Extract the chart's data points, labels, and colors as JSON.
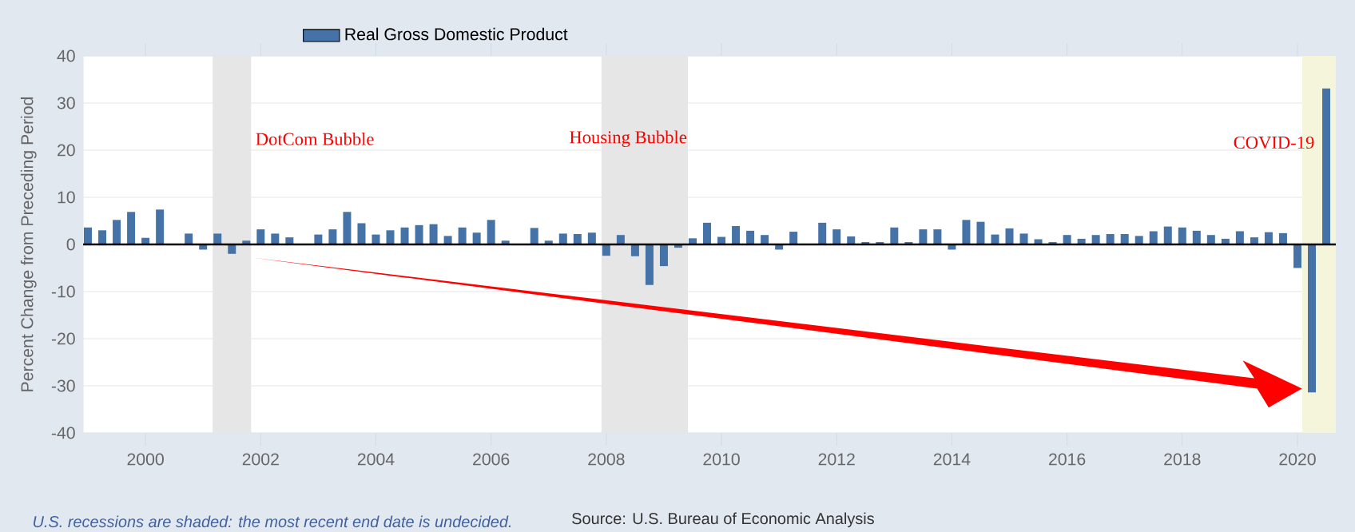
{
  "chart_data": {
    "type": "bar",
    "ylabel": "Percent Change from Preceding Period",
    "x": [
      "1999-01",
      "1999-04",
      "1999-07",
      "1999-10",
      "2000-01",
      "2000-04",
      "2000-07",
      "2000-10",
      "2001-01",
      "2001-04",
      "2001-07",
      "2001-10",
      "2002-01",
      "2002-04",
      "2002-07",
      "2002-10",
      "2003-01",
      "2003-04",
      "2003-07",
      "2003-10",
      "2004-01",
      "2004-04",
      "2004-07",
      "2004-10",
      "2005-01",
      "2005-04",
      "2005-07",
      "2005-10",
      "2006-01",
      "2006-04",
      "2006-07",
      "2006-10",
      "2007-01",
      "2007-04",
      "2007-07",
      "2007-10",
      "2008-01",
      "2008-04",
      "2008-07",
      "2008-10",
      "2009-01",
      "2009-04",
      "2009-07",
      "2009-10",
      "2010-01",
      "2010-04",
      "2010-07",
      "2010-10",
      "2011-01",
      "2011-04",
      "2011-07",
      "2011-10",
      "2012-01",
      "2012-04",
      "2012-07",
      "2012-10",
      "2013-01",
      "2013-04",
      "2013-07",
      "2013-10",
      "2014-01",
      "2014-04",
      "2014-07",
      "2014-10",
      "2015-01",
      "2015-04",
      "2015-07",
      "2015-10",
      "2016-01",
      "2016-04",
      "2016-07",
      "2016-10",
      "2017-01",
      "2017-04",
      "2017-07",
      "2017-10",
      "2018-01",
      "2018-04",
      "2018-07",
      "2018-10",
      "2019-01",
      "2019-04",
      "2019-07",
      "2019-10",
      "2020-01",
      "2020-04",
      "2020-07"
    ],
    "series": [
      {
        "name": "Real Gross Domestic Product",
        "color": "#4572a7",
        "values": [
          3.6,
          3.0,
          5.2,
          6.9,
          1.4,
          7.4,
          null,
          2.3,
          -1.1,
          2.3,
          -2.0,
          0.8,
          3.2,
          2.3,
          1.5,
          null,
          2.1,
          3.2,
          6.9,
          4.5,
          2.1,
          3.0,
          3.6,
          4.1,
          4.3,
          1.8,
          3.6,
          2.5,
          5.2,
          0.8,
          null,
          3.5,
          0.8,
          2.3,
          2.2,
          2.5,
          -2.4,
          2.0,
          -2.5,
          -8.6,
          -4.6,
          -0.7,
          1.3,
          4.6,
          1.6,
          3.9,
          2.9,
          2.0,
          -1.1,
          2.7,
          null,
          4.6,
          3.2,
          1.7,
          0.5,
          0.5,
          3.6,
          0.5,
          3.2,
          3.2,
          -1.1,
          5.2,
          4.8,
          2.1,
          3.4,
          2.3,
          1.1,
          0.5,
          2.0,
          1.2,
          2.0,
          2.2,
          2.2,
          1.8,
          2.8,
          3.8,
          3.6,
          2.9,
          2.0,
          1.2,
          2.8,
          1.5,
          2.6,
          2.4,
          -5.0,
          -31.4,
          33.1
        ]
      }
    ],
    "xlim": [
      "1998-12",
      "2020-09"
    ],
    "xticks": [
      "2000",
      "2002",
      "2004",
      "2006",
      "2008",
      "2010",
      "2012",
      "2014",
      "2016",
      "2018",
      "2020"
    ],
    "ylim": [
      -40,
      40
    ],
    "yticks": [
      -40,
      -30,
      -20,
      -10,
      0,
      10,
      20,
      30,
      40
    ],
    "grid": "y",
    "legend": "top left",
    "bands": [
      {
        "axis": "x",
        "from": "2001-03",
        "to": "2001-11",
        "color": "#e6e6e6"
      },
      {
        "axis": "x",
        "from": "2007-12",
        "to": "2009-06",
        "color": "#e6e6e6"
      },
      {
        "axis": "x",
        "from": "2020-02",
        "to": "2020-09",
        "color": "#f5f5dc"
      }
    ],
    "ref_lines": [
      {
        "axis": "y",
        "value": 0,
        "color": "#000000"
      }
    ],
    "annotations": [
      "DotCom Bubble",
      "Housing Bubble",
      "COVID-19",
      "U.S. recessions are shaded: the most recent end date is undecided.",
      "Source: U.S. Bureau of Economic Analysis"
    ]
  }
}
